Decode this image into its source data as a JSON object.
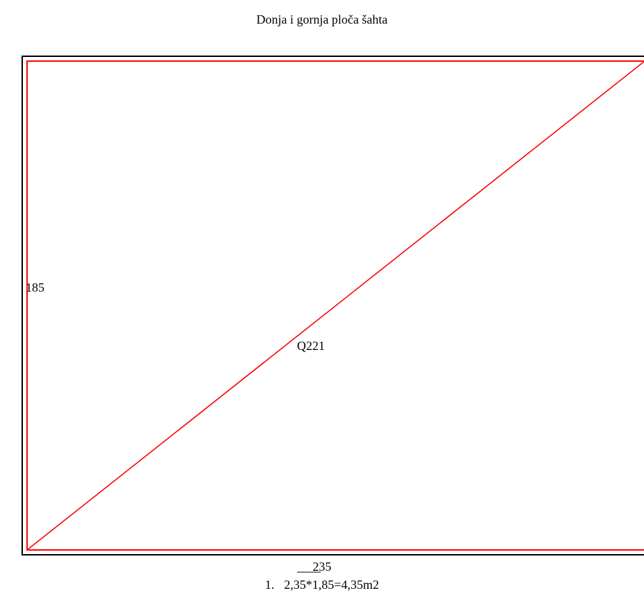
{
  "title": "Donja i gornja ploča šahta",
  "dimensions": {
    "side": "185",
    "bottom": "235"
  },
  "slab_label": "Q221",
  "calculation": {
    "number": "1.",
    "text": "2,35*1,85=4,35m2"
  },
  "colors": {
    "outline": "#000000",
    "slab": "#ff0000"
  }
}
